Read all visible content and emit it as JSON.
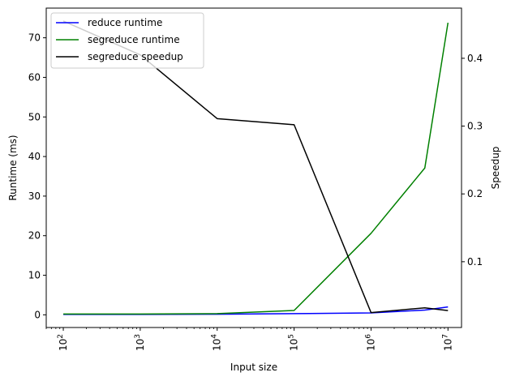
{
  "chart_data": {
    "type": "line",
    "title": "",
    "xlabel": "Input size",
    "ylabel_left": "Runtime (ms)",
    "ylabel_right": "Speedup",
    "x_scale": "log",
    "xlim": [
      60,
      15000000
    ],
    "ylim_left": [
      -3.2,
      77.5
    ],
    "ylim_right": [
      0.003,
      0.474
    ],
    "grid": false,
    "legend_placement": "upper-left",
    "x_ticks": [
      {
        "value": 100,
        "label": "10^2"
      },
      {
        "value": 1000,
        "label": "10^3"
      },
      {
        "value": 10000,
        "label": "10^4"
      },
      {
        "value": 100000,
        "label": "10^5"
      },
      {
        "value": 1000000,
        "label": "10^6"
      },
      {
        "value": 10000000,
        "label": "10^7"
      }
    ],
    "y_ticks_left": [
      0,
      10,
      20,
      30,
      40,
      50,
      60,
      70
    ],
    "y_ticks_right": [
      0.1,
      0.2,
      0.3,
      0.4
    ],
    "series": [
      {
        "name": "reduce runtime",
        "axis": "left",
        "color": "#0000ff",
        "x": [
          100,
          1000,
          10000,
          100000,
          1000000,
          5000000,
          10000000
        ],
        "y": [
          0.1,
          0.1,
          0.15,
          0.3,
          0.5,
          1.2,
          2.0
        ]
      },
      {
        "name": "segreduce runtime",
        "axis": "left",
        "color": "#008000",
        "x": [
          100,
          1000,
          10000,
          100000,
          1000000,
          5000000,
          10000000
        ],
        "y": [
          0.2,
          0.2,
          0.3,
          1.1,
          20.6,
          37.1,
          73.8
        ]
      },
      {
        "name": "segreduce speedup",
        "axis": "right",
        "color": "#000000",
        "x": [
          100,
          1000,
          10000,
          100000,
          1000000,
          5000000,
          10000000
        ],
        "y": [
          0.455,
          0.405,
          0.311,
          0.302,
          0.025,
          0.032,
          0.028
        ]
      }
    ]
  }
}
